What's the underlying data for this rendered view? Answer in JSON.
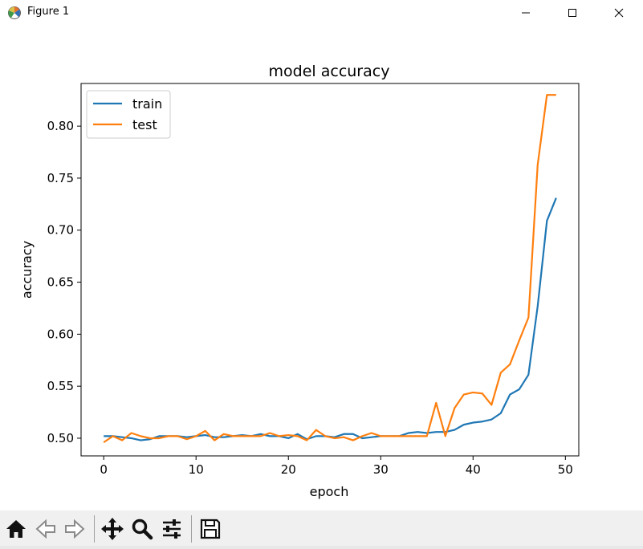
{
  "window": {
    "title": "Figure 1",
    "app_icon": "matplotlib-figure-icon",
    "controls": [
      "minimize-icon",
      "maximize-icon",
      "close-icon"
    ]
  },
  "toolbar": {
    "buttons": [
      {
        "name": "home",
        "icon": "home-icon"
      },
      {
        "name": "back",
        "icon": "arrow-left-icon"
      },
      {
        "name": "forward",
        "icon": "arrow-right-icon"
      },
      {
        "name": "pan",
        "icon": "move-icon"
      },
      {
        "name": "zoom",
        "icon": "magnifier-icon"
      },
      {
        "name": "configure-subplots",
        "icon": "sliders-icon"
      },
      {
        "name": "save",
        "icon": "floppy-disk-icon"
      }
    ]
  },
  "chart_data": {
    "type": "line",
    "title": "model accuracy",
    "xlabel": "epoch",
    "ylabel": "accuracy",
    "xlim": [
      -2.45,
      51.45
    ],
    "ylim": [
      0.483,
      0.841
    ],
    "xticks": [
      0,
      10,
      20,
      30,
      40,
      50
    ],
    "yticks": [
      0.5,
      0.55,
      0.6,
      0.65,
      0.7,
      0.75,
      0.8
    ],
    "xtick_labels": [
      "0",
      "10",
      "20",
      "30",
      "40",
      "50"
    ],
    "ytick_labels": [
      "0.50",
      "0.55",
      "0.60",
      "0.65",
      "0.70",
      "0.75",
      "0.80"
    ],
    "grid": false,
    "legend": "upper-left",
    "x": [
      0,
      1,
      2,
      3,
      4,
      5,
      6,
      7,
      8,
      9,
      10,
      11,
      12,
      13,
      14,
      15,
      16,
      17,
      18,
      19,
      20,
      21,
      22,
      23,
      24,
      25,
      26,
      27,
      28,
      29,
      30,
      31,
      32,
      33,
      34,
      35,
      36,
      37,
      38,
      39,
      40,
      41,
      42,
      43,
      44,
      45,
      46,
      47,
      48,
      49
    ],
    "series": [
      {
        "name": "train",
        "color": "#1f77b4",
        "values": [
          0.502,
          0.502,
          0.501,
          0.5,
          0.498,
          0.499,
          0.502,
          0.502,
          0.502,
          0.501,
          0.502,
          0.503,
          0.501,
          0.501,
          0.502,
          0.503,
          0.502,
          0.504,
          0.502,
          0.502,
          0.5,
          0.504,
          0.499,
          0.502,
          0.502,
          0.501,
          0.504,
          0.504,
          0.5,
          0.501,
          0.502,
          0.502,
          0.502,
          0.505,
          0.506,
          0.505,
          0.506,
          0.506,
          0.508,
          0.513,
          0.515,
          0.516,
          0.518,
          0.524,
          0.542,
          0.547,
          0.561,
          0.627,
          0.709,
          0.731
        ]
      },
      {
        "name": "test",
        "color": "#ff7f0e",
        "values": [
          0.496,
          0.502,
          0.498,
          0.505,
          0.502,
          0.5,
          0.5,
          0.502,
          0.502,
          0.499,
          0.502,
          0.507,
          0.498,
          0.504,
          0.502,
          0.502,
          0.502,
          0.502,
          0.505,
          0.502,
          0.503,
          0.502,
          0.498,
          0.508,
          0.502,
          0.5,
          0.501,
          0.498,
          0.502,
          0.505,
          0.502,
          0.502,
          0.502,
          0.502,
          0.502,
          0.502,
          0.534,
          0.502,
          0.529,
          0.542,
          0.544,
          0.543,
          0.532,
          0.563,
          0.571,
          0.594,
          0.616,
          0.763,
          0.83,
          0.83
        ]
      }
    ]
  }
}
